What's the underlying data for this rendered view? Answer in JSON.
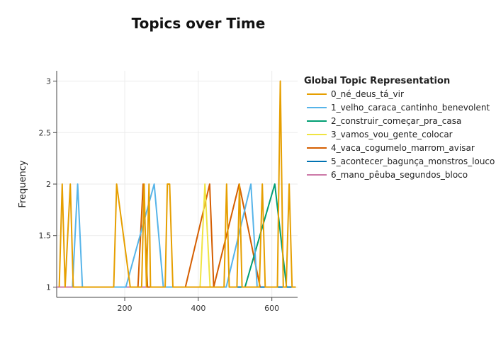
{
  "chart_data": {
    "type": "line",
    "title": "Topics over Time",
    "xlabel": "",
    "ylabel": "Frequency",
    "xlim": [
      15,
      670
    ],
    "ylim": [
      0.9,
      3.1
    ],
    "x_ticks": [
      200,
      400,
      600
    ],
    "y_ticks": [
      1,
      1.5,
      2,
      2.5,
      3
    ],
    "grid": true,
    "legend_title": "Global Topic Representation",
    "legend_position": "right",
    "series": [
      {
        "name": "0_né_deus_tá_vir",
        "color": "#E69F00",
        "x": [
          22,
          30,
          38,
          52,
          60,
          170,
          178,
          215,
          246,
          253,
          259,
          266,
          270,
          310,
          316,
          322,
          331,
          336,
          456,
          463,
          470,
          477,
          484,
          491,
          498,
          505,
          512,
          519,
          526,
          550,
          558,
          566,
          574,
          582,
          590,
          615,
          623,
          631,
          639,
          647,
          655,
          665
        ],
        "y": [
          1,
          2,
          1,
          2,
          1,
          1,
          2,
          1,
          1,
          2,
          1,
          2,
          1,
          1,
          2,
          2,
          1,
          1,
          1,
          1,
          1,
          2,
          1,
          1,
          1,
          1,
          2,
          1,
          1,
          1,
          1,
          1,
          2,
          1,
          1,
          1,
          3,
          1,
          1,
          2,
          1,
          1
        ]
      },
      {
        "name": "1_velho_caraca_cantinho_benevolent",
        "color": "#56B4E9",
        "x": [
          58,
          72,
          85,
          203,
          280,
          305,
          476,
          543,
          560
        ],
        "y": [
          1,
          2,
          1,
          1,
          2,
          1,
          1,
          2,
          1
        ]
      },
      {
        "name": "2_construir_começar_pra_casa",
        "color": "#009E73",
        "x": [
          515,
          527,
          608,
          640
        ],
        "y": [
          1,
          1,
          2,
          1
        ]
      },
      {
        "name": "3_vamos_vou_gente_colocar",
        "color": "#F0E442",
        "x": [
          405,
          418,
          432
        ],
        "y": [
          1,
          2,
          1
        ]
      },
      {
        "name": "4_vaca_cogumelo_marrom_avisar",
        "color": "#D55E00",
        "x": [
          236,
          250,
          262,
          365,
          431,
          442,
          511,
          568
        ],
        "y": [
          1,
          2,
          1,
          1,
          2,
          1,
          2,
          1
        ]
      },
      {
        "name": "5_acontecer_bagunça_monstros_louco",
        "color": "#0072B2",
        "x": [
          485,
          498,
          645,
          665
        ],
        "y": [
          1,
          1,
          1,
          1
        ]
      },
      {
        "name": "6_mano_pêuba_segundos_bloco",
        "color": "#CC79A7",
        "x": [
          15,
          30,
          60,
          100,
          150,
          200,
          230,
          290,
          330,
          360,
          400,
          430
        ],
        "y": [
          1,
          1,
          1,
          1,
          1,
          1,
          1,
          1,
          1,
          1,
          1,
          1
        ]
      }
    ]
  }
}
